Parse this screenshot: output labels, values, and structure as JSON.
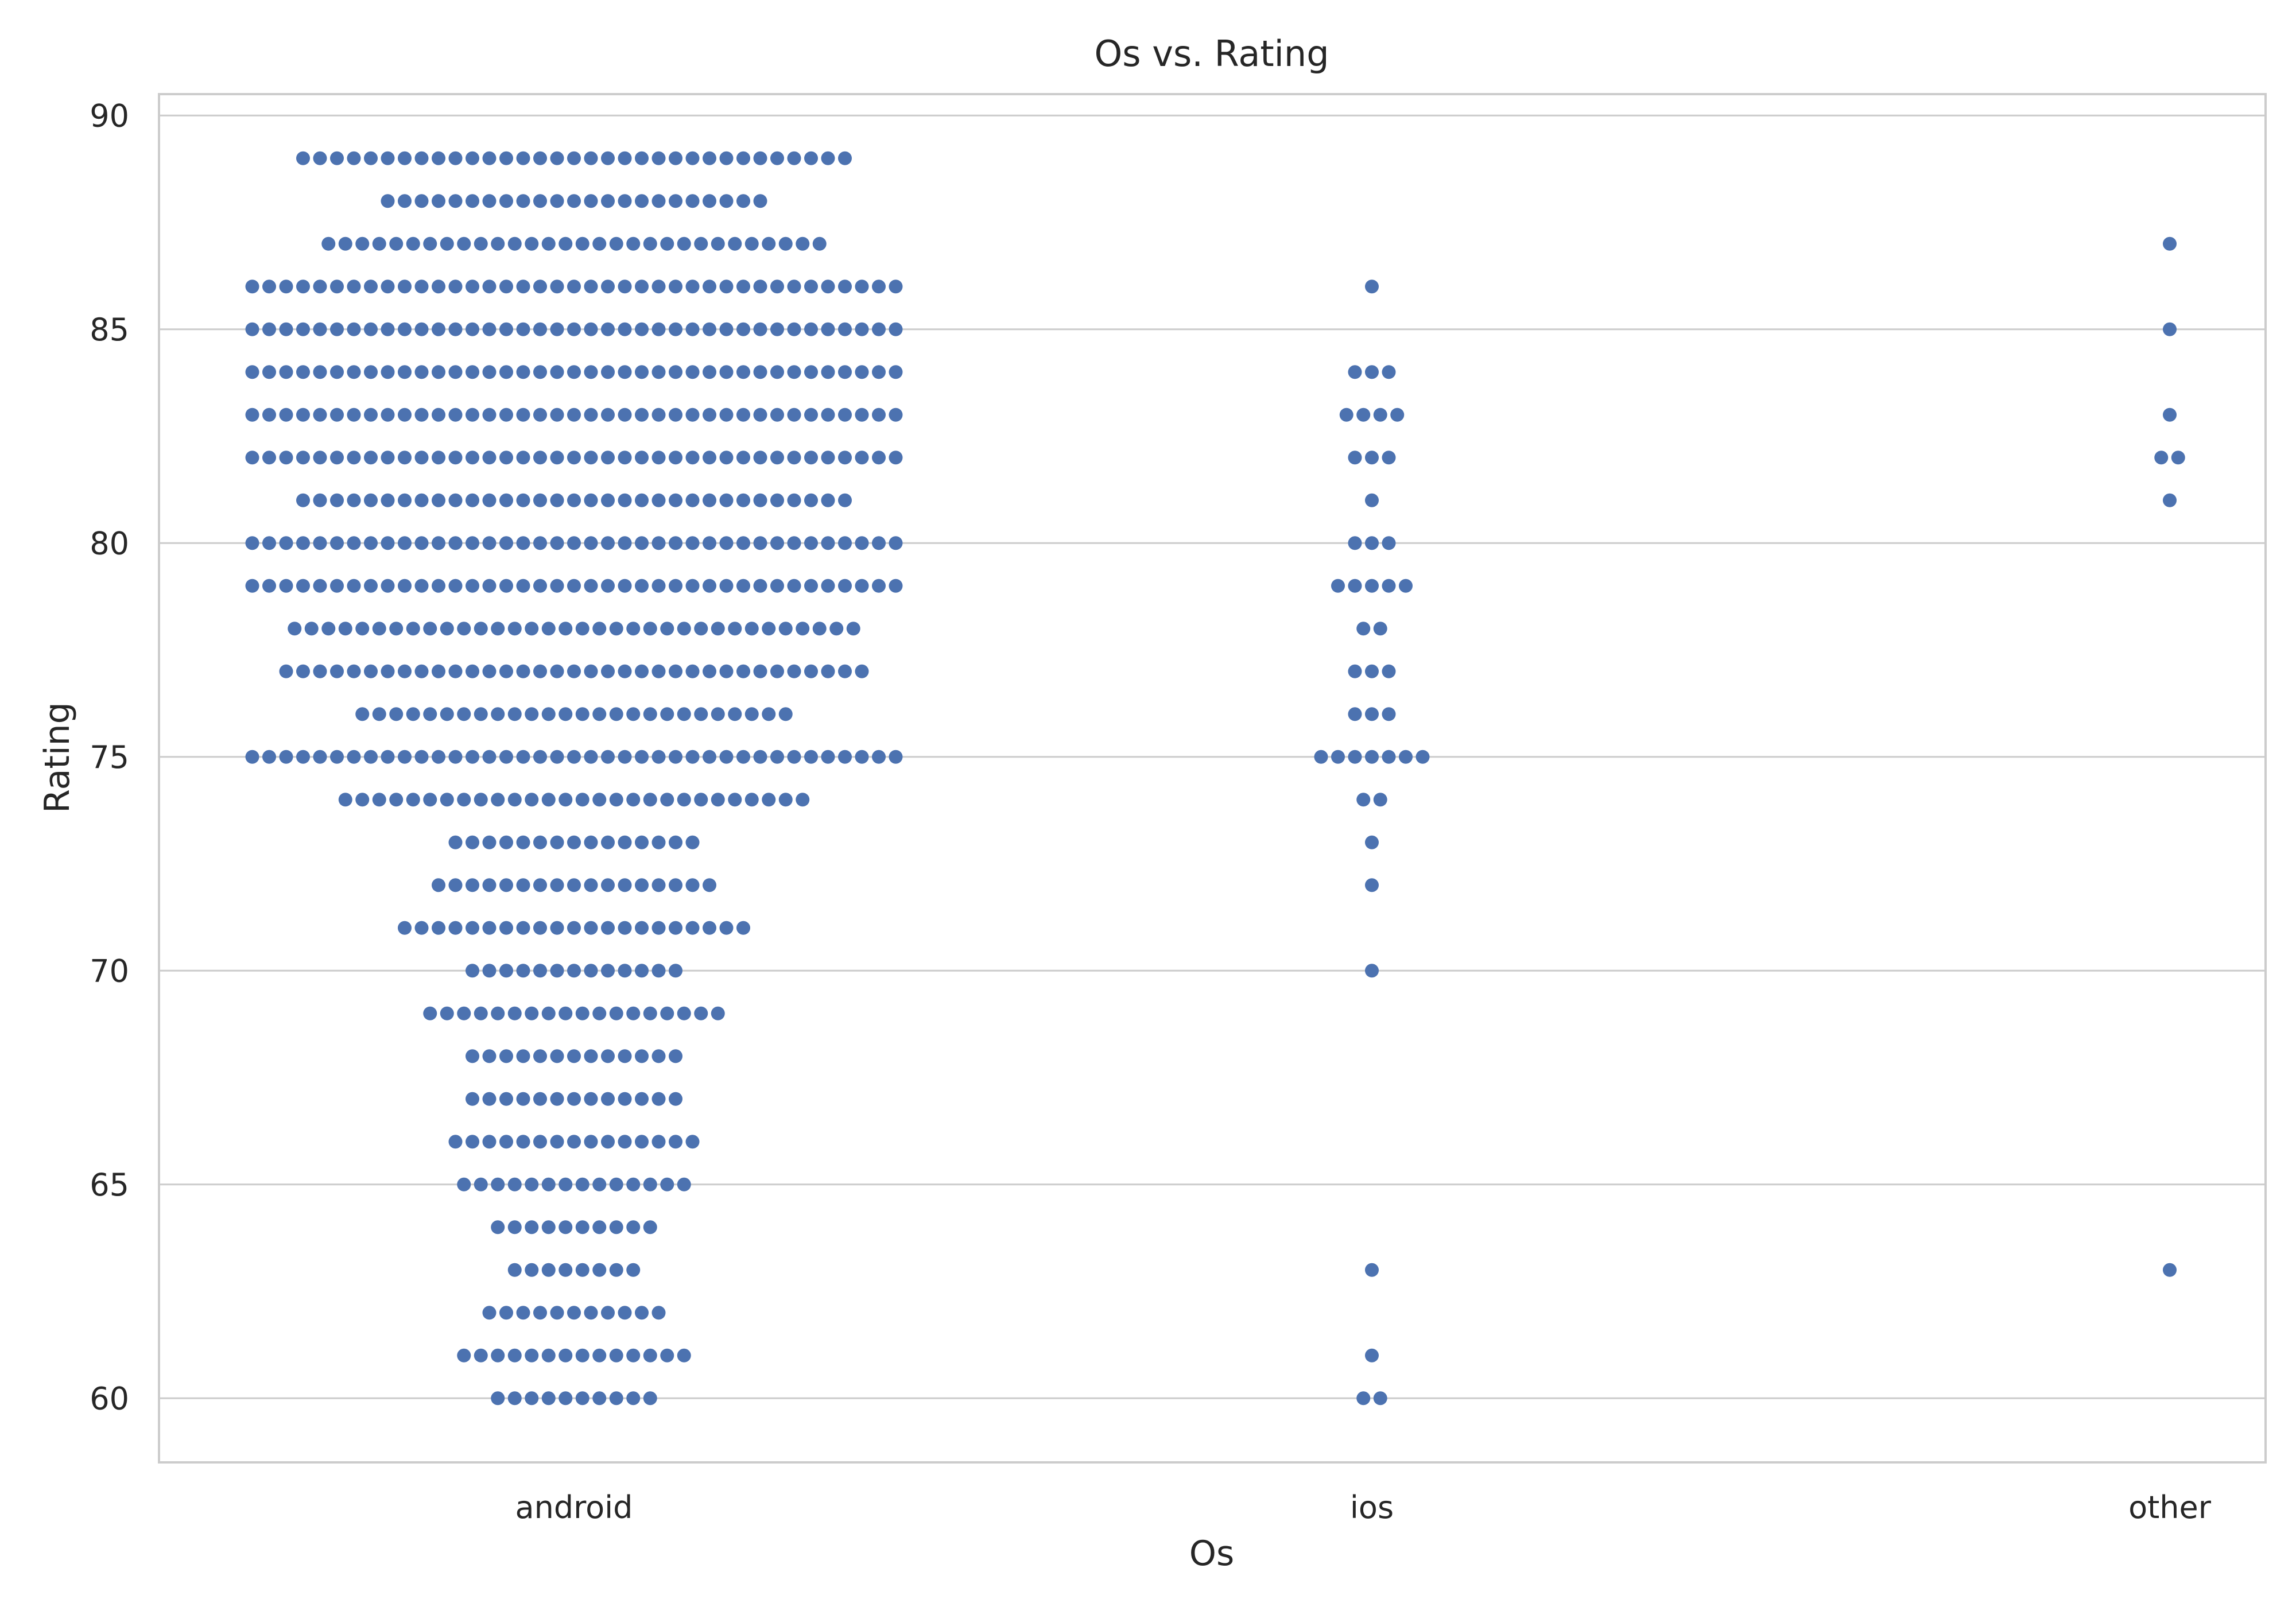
{
  "chart_data": {
    "type": "scatter",
    "subtype": "swarm",
    "title": "Os vs. Rating",
    "xlabel": "Os",
    "ylabel": "Rating",
    "categories": [
      "android",
      "ios",
      "other"
    ],
    "ylim": [
      58.5,
      90.5
    ],
    "yticks": [
      "60",
      "65",
      "70",
      "75",
      "80",
      "85",
      "90"
    ],
    "grid": "horizontal",
    "marker_color": "#4c72b0",
    "points_by_category": [
      {
        "category": "android",
        "counts_by_rating": [
          {
            "y": 89,
            "count": 33
          },
          {
            "y": 88,
            "count": 23
          },
          {
            "y": 87,
            "count": 30
          },
          {
            "y": 86,
            "count": 39
          },
          {
            "y": 85,
            "count": 39
          },
          {
            "y": 84,
            "count": 39
          },
          {
            "y": 83,
            "count": 39
          },
          {
            "y": 82,
            "count": 39
          },
          {
            "y": 81,
            "count": 33
          },
          {
            "y": 80,
            "count": 39
          },
          {
            "y": 79,
            "count": 39
          },
          {
            "y": 78,
            "count": 34
          },
          {
            "y": 77,
            "count": 35
          },
          {
            "y": 76,
            "count": 26
          },
          {
            "y": 75,
            "count": 39
          },
          {
            "y": 74,
            "count": 28
          },
          {
            "y": 73,
            "count": 15
          },
          {
            "y": 72,
            "count": 17
          },
          {
            "y": 71,
            "count": 21
          },
          {
            "y": 70,
            "count": 13
          },
          {
            "y": 69,
            "count": 18
          },
          {
            "y": 68,
            "count": 13
          },
          {
            "y": 67,
            "count": 13
          },
          {
            "y": 66,
            "count": 15
          },
          {
            "y": 65,
            "count": 14
          },
          {
            "y": 64,
            "count": 10
          },
          {
            "y": 63,
            "count": 8
          },
          {
            "y": 62,
            "count": 11
          },
          {
            "y": 61,
            "count": 14
          },
          {
            "y": 60,
            "count": 10
          }
        ]
      },
      {
        "category": "ios",
        "counts_by_rating": [
          {
            "y": 86,
            "count": 1
          },
          {
            "y": 84,
            "count": 3
          },
          {
            "y": 83,
            "count": 4
          },
          {
            "y": 82,
            "count": 3
          },
          {
            "y": 81,
            "count": 1
          },
          {
            "y": 80,
            "count": 3
          },
          {
            "y": 79,
            "count": 5
          },
          {
            "y": 78,
            "count": 2
          },
          {
            "y": 77,
            "count": 3
          },
          {
            "y": 76,
            "count": 3
          },
          {
            "y": 75,
            "count": 7
          },
          {
            "y": 74,
            "count": 2
          },
          {
            "y": 73,
            "count": 1
          },
          {
            "y": 72,
            "count": 1
          },
          {
            "y": 70,
            "count": 1
          },
          {
            "y": 63,
            "count": 1
          },
          {
            "y": 61,
            "count": 1
          },
          {
            "y": 60,
            "count": 2
          }
        ]
      },
      {
        "category": "other",
        "counts_by_rating": [
          {
            "y": 87,
            "count": 1
          },
          {
            "y": 85,
            "count": 1
          },
          {
            "y": 83,
            "count": 1
          },
          {
            "y": 82,
            "count": 2
          },
          {
            "y": 81,
            "count": 1
          },
          {
            "y": 63,
            "count": 1
          }
        ]
      }
    ]
  }
}
